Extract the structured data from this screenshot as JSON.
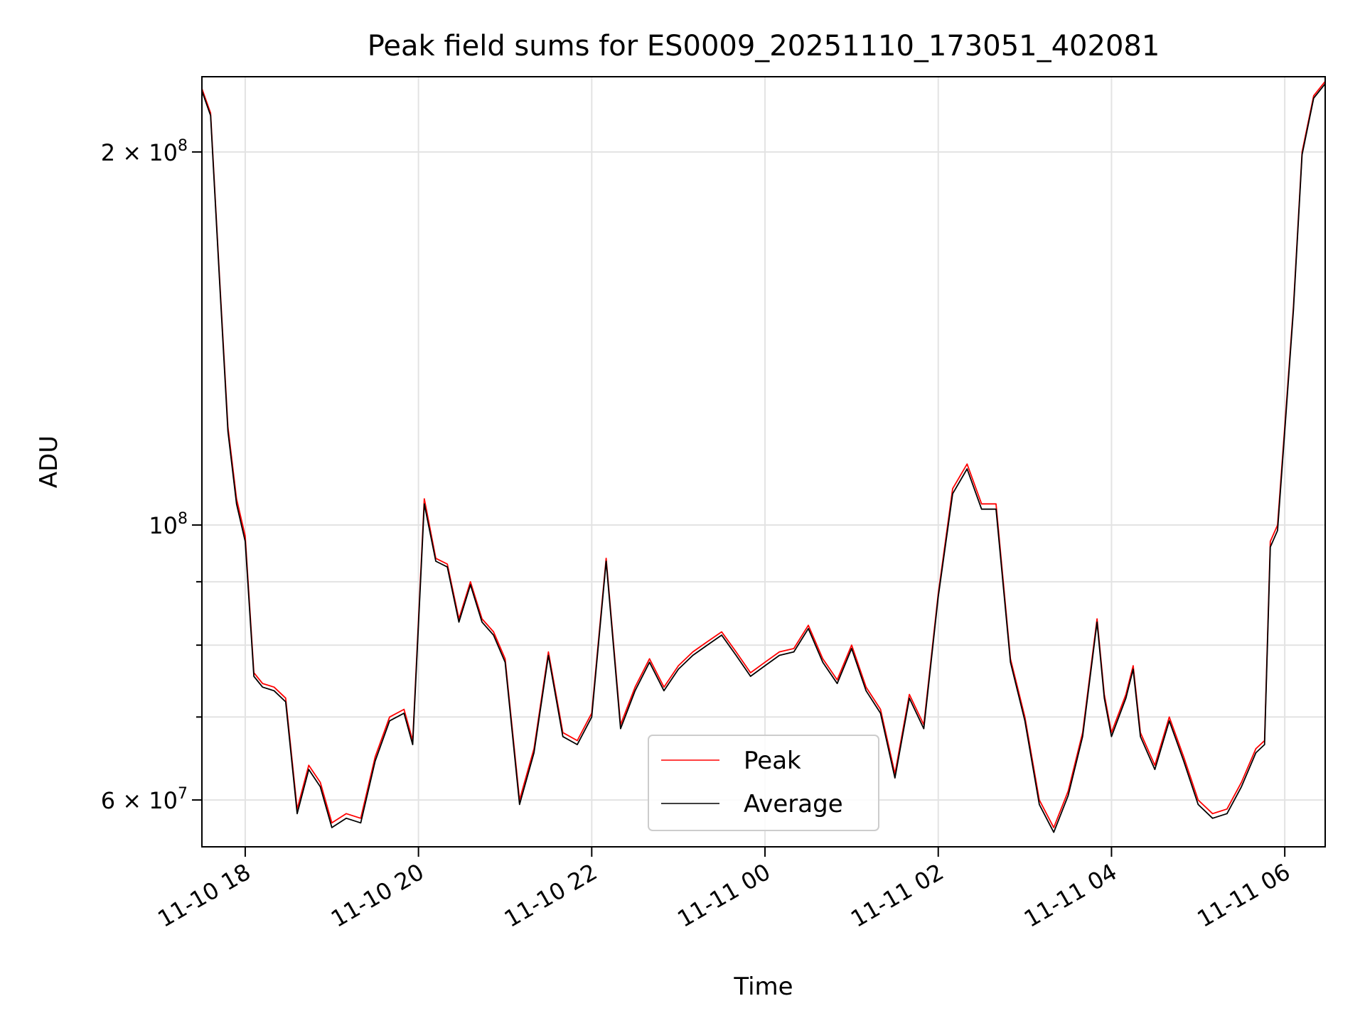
{
  "chart_data": {
    "type": "line",
    "title": "Peak field sums for ES0009_20251110_173051_402081",
    "xlabel": "Time",
    "ylabel": "ADU",
    "yscale": "log",
    "xlim": [
      "2025-11-10T17:30",
      "2025-11-11T06:28"
    ],
    "ylim": [
      55000000,
      230000000
    ],
    "grid": true,
    "legend_position": "bottom-center",
    "x_ticks": [
      "11-10 18",
      "11-10 20",
      "11-10 22",
      "11-11 00",
      "11-11 02",
      "11-11 04",
      "11-11 06"
    ],
    "y_tick_labels": [
      {
        "value": 200000000,
        "mantissa": "2",
        "exponent": "8"
      },
      {
        "value": 100000000,
        "mantissa": "",
        "exponent": "8"
      },
      {
        "value": 60000000,
        "mantissa": "6",
        "exponent": "7"
      }
    ],
    "y_minor_ticks": [
      70000000,
      80000000,
      90000000
    ],
    "series": [
      {
        "name": "Peak",
        "color": "#ff0000",
        "x": [
          "2025-11-10T17:30",
          "2025-11-10T17:36",
          "2025-11-10T17:42",
          "2025-11-10T17:48",
          "2025-11-10T17:54",
          "2025-11-10T18:00",
          "2025-11-10T18:06",
          "2025-11-10T18:12",
          "2025-11-10T18:20",
          "2025-11-10T18:28",
          "2025-11-10T18:36",
          "2025-11-10T18:44",
          "2025-11-10T18:52",
          "2025-11-10T19:00",
          "2025-11-10T19:10",
          "2025-11-10T19:20",
          "2025-11-10T19:30",
          "2025-11-10T19:40",
          "2025-11-10T19:50",
          "2025-11-10T19:56",
          "2025-11-10T20:04",
          "2025-11-10T20:12",
          "2025-11-10T20:20",
          "2025-11-10T20:28",
          "2025-11-10T20:36",
          "2025-11-10T20:44",
          "2025-11-10T20:52",
          "2025-11-10T21:00",
          "2025-11-10T21:10",
          "2025-11-10T21:20",
          "2025-11-10T21:30",
          "2025-11-10T21:40",
          "2025-11-10T21:50",
          "2025-11-10T22:00",
          "2025-11-10T22:10",
          "2025-11-10T22:20",
          "2025-11-10T22:30",
          "2025-11-10T22:40",
          "2025-11-10T22:50",
          "2025-11-10T23:00",
          "2025-11-10T23:10",
          "2025-11-10T23:20",
          "2025-11-10T23:30",
          "2025-11-10T23:40",
          "2025-11-10T23:50",
          "2025-11-11T00:00",
          "2025-11-11T00:10",
          "2025-11-11T00:20",
          "2025-11-11T00:30",
          "2025-11-11T00:40",
          "2025-11-11T00:50",
          "2025-11-11T01:00",
          "2025-11-11T01:10",
          "2025-11-11T01:20",
          "2025-11-11T01:30",
          "2025-11-11T01:40",
          "2025-11-11T01:50",
          "2025-11-11T02:00",
          "2025-11-11T02:10",
          "2025-11-11T02:20",
          "2025-11-11T02:30",
          "2025-11-11T02:40",
          "2025-11-11T02:50",
          "2025-11-11T03:00",
          "2025-11-11T03:10",
          "2025-11-11T03:20",
          "2025-11-11T03:30",
          "2025-11-11T03:40",
          "2025-11-11T03:50",
          "2025-11-11T03:55",
          "2025-11-11T04:00",
          "2025-11-11T04:10",
          "2025-11-11T04:15",
          "2025-11-11T04:20",
          "2025-11-11T04:30",
          "2025-11-11T04:40",
          "2025-11-11T04:50",
          "2025-11-11T05:00",
          "2025-11-11T05:10",
          "2025-11-11T05:20",
          "2025-11-11T05:30",
          "2025-11-11T05:40",
          "2025-11-11T05:46",
          "2025-11-11T05:50",
          "2025-11-11T05:55",
          "2025-11-11T06:00",
          "2025-11-11T06:06",
          "2025-11-11T06:12",
          "2025-11-11T06:20",
          "2025-11-11T06:28"
        ],
        "y": [
          225000000,
          215000000,
          160000000,
          120000000,
          105000000,
          98000000,
          76000000,
          74500000,
          74000000,
          72500000,
          59000000,
          64000000,
          62000000,
          57500000,
          58500000,
          58000000,
          65000000,
          70000000,
          71000000,
          67000000,
          105000000,
          94000000,
          93000000,
          84000000,
          90000000,
          84000000,
          82000000,
          78000000,
          60000000,
          66000000,
          79000000,
          68000000,
          67000000,
          70500000,
          94000000,
          69000000,
          74000000,
          78000000,
          74000000,
          77000000,
          79000000,
          80500000,
          82000000,
          79000000,
          76000000,
          77500000,
          79000000,
          79500000,
          83000000,
          78000000,
          75000000,
          80000000,
          74000000,
          71000000,
          63000000,
          73000000,
          69000000,
          88000000,
          107000000,
          112000000,
          104000000,
          104000000,
          78000000,
          70000000,
          60000000,
          57000000,
          61000000,
          68000000,
          84000000,
          73000000,
          68000000,
          73000000,
          77000000,
          68000000,
          64000000,
          70000000,
          65000000,
          60000000,
          58500000,
          59000000,
          62000000,
          66000000,
          67000000,
          97000000,
          100000000,
          120000000,
          150000000,
          200000000,
          222000000,
          228000000
        ]
      },
      {
        "name": "Average",
        "color": "#000000",
        "x": [
          "2025-11-10T17:30",
          "2025-11-10T17:36",
          "2025-11-10T17:42",
          "2025-11-10T17:48",
          "2025-11-10T17:54",
          "2025-11-10T18:00",
          "2025-11-10T18:06",
          "2025-11-10T18:12",
          "2025-11-10T18:20",
          "2025-11-10T18:28",
          "2025-11-10T18:36",
          "2025-11-10T18:44",
          "2025-11-10T18:52",
          "2025-11-10T19:00",
          "2025-11-10T19:10",
          "2025-11-10T19:20",
          "2025-11-10T19:30",
          "2025-11-10T19:40",
          "2025-11-10T19:50",
          "2025-11-10T19:56",
          "2025-11-10T20:04",
          "2025-11-10T20:12",
          "2025-11-10T20:20",
          "2025-11-10T20:28",
          "2025-11-10T20:36",
          "2025-11-10T20:44",
          "2025-11-10T20:52",
          "2025-11-10T21:00",
          "2025-11-10T21:10",
          "2025-11-10T21:20",
          "2025-11-10T21:30",
          "2025-11-10T21:40",
          "2025-11-10T21:50",
          "2025-11-10T22:00",
          "2025-11-10T22:10",
          "2025-11-10T22:20",
          "2025-11-10T22:30",
          "2025-11-10T22:40",
          "2025-11-10T22:50",
          "2025-11-10T23:00",
          "2025-11-10T23:10",
          "2025-11-10T23:20",
          "2025-11-10T23:30",
          "2025-11-10T23:40",
          "2025-11-10T23:50",
          "2025-11-11T00:00",
          "2025-11-11T00:10",
          "2025-11-11T00:20",
          "2025-11-11T00:30",
          "2025-11-11T00:40",
          "2025-11-11T00:50",
          "2025-11-11T01:00",
          "2025-11-11T01:10",
          "2025-11-11T01:20",
          "2025-11-11T01:30",
          "2025-11-11T01:40",
          "2025-11-11T01:50",
          "2025-11-11T02:00",
          "2025-11-11T02:10",
          "2025-11-11T02:20",
          "2025-11-11T02:30",
          "2025-11-11T02:40",
          "2025-11-11T02:50",
          "2025-11-11T03:00",
          "2025-11-11T03:10",
          "2025-11-11T03:20",
          "2025-11-11T03:30",
          "2025-11-11T03:40",
          "2025-11-11T03:50",
          "2025-11-11T03:55",
          "2025-11-11T04:00",
          "2025-11-11T04:10",
          "2025-11-11T04:15",
          "2025-11-11T04:20",
          "2025-11-11T04:30",
          "2025-11-11T04:40",
          "2025-11-11T04:50",
          "2025-11-11T05:00",
          "2025-11-11T05:10",
          "2025-11-11T05:20",
          "2025-11-11T05:30",
          "2025-11-11T05:40",
          "2025-11-11T05:46",
          "2025-11-11T05:50",
          "2025-11-11T05:55",
          "2025-11-11T06:00",
          "2025-11-11T06:06",
          "2025-11-11T06:12",
          "2025-11-11T06:20",
          "2025-11-11T06:28"
        ],
        "y": [
          224000000,
          214000000,
          159000000,
          119000000,
          104000000,
          97000000,
          75500000,
          74000000,
          73500000,
          72000000,
          58500000,
          63500000,
          61500000,
          57000000,
          58000000,
          57500000,
          64500000,
          69500000,
          70500000,
          66500000,
          104000000,
          93500000,
          92500000,
          83500000,
          89500000,
          83500000,
          81500000,
          77500000,
          59500000,
          65500000,
          78500000,
          67500000,
          66500000,
          70000000,
          93500000,
          68500000,
          73500000,
          77500000,
          73500000,
          76500000,
          78500000,
          80000000,
          81500000,
          78500000,
          75500000,
          77000000,
          78500000,
          79000000,
          82500000,
          77500000,
          74500000,
          79500000,
          73500000,
          70500000,
          62500000,
          72500000,
          68500000,
          87500000,
          106000000,
          111000000,
          103000000,
          103000000,
          77500000,
          69500000,
          59500000,
          56500000,
          60500000,
          67500000,
          83500000,
          72500000,
          67500000,
          72500000,
          76500000,
          67500000,
          63500000,
          69500000,
          64500000,
          59500000,
          58000000,
          58500000,
          61500000,
          65500000,
          66500000,
          96000000,
          99000000,
          119000000,
          149000000,
          199000000,
          221000000,
          227000000
        ]
      }
    ]
  }
}
